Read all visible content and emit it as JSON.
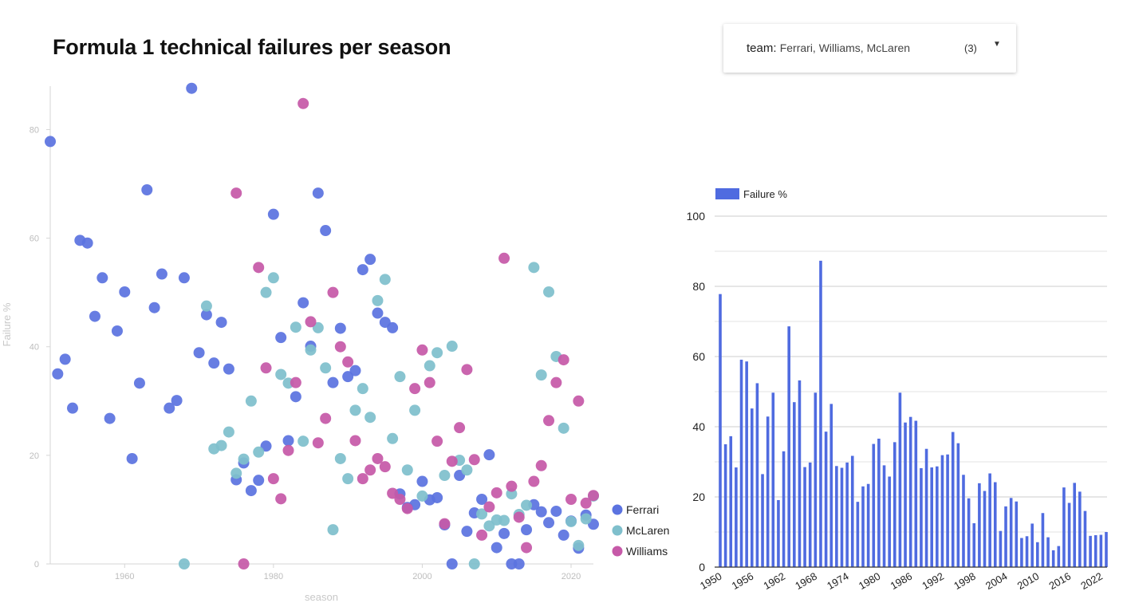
{
  "page_title": "Formula 1 technical failures per season",
  "filter": {
    "label": "team",
    "value": "Ferrari, Williams, McLaren",
    "count": "(3)",
    "caret_icon": "caret-down-icon"
  },
  "chart_data": [
    {
      "type": "scatter",
      "xlabel": "season",
      "ylabel": "Failure %",
      "xlim": [
        1950,
        2023
      ],
      "ylim": [
        0,
        88
      ],
      "x_ticks": [
        1960,
        1980,
        2000,
        2020
      ],
      "y_ticks": [
        0,
        20,
        40,
        60,
        80
      ],
      "legend_position": "right",
      "series": [
        {
          "name": "Ferrari",
          "color": "#5b73e0",
          "points": [
            [
              1950,
              77.8
            ],
            [
              1951,
              35
            ],
            [
              1952,
              37.7
            ],
            [
              1953,
              28.7
            ],
            [
              1954,
              59.6
            ],
            [
              1955,
              59.1
            ],
            [
              1956,
              45.6
            ],
            [
              1957,
              52.7
            ],
            [
              1958,
              26.8
            ],
            [
              1959,
              42.9
            ],
            [
              1960,
              50.1
            ],
            [
              1961,
              19.4
            ],
            [
              1962,
              33.3
            ],
            [
              1963,
              68.9
            ],
            [
              1964,
              47.2
            ],
            [
              1965,
              53.4
            ],
            [
              1966,
              28.7
            ],
            [
              1967,
              30.1
            ],
            [
              1968,
              52.7
            ],
            [
              1969,
              87.6
            ],
            [
              1970,
              38.9
            ],
            [
              1971,
              45.9
            ],
            [
              1972,
              37
            ],
            [
              1973,
              44.5
            ],
            [
              1974,
              35.9
            ],
            [
              1975,
              15.5
            ],
            [
              1976,
              18.6
            ],
            [
              1977,
              13.5
            ],
            [
              1978,
              15.4
            ],
            [
              1979,
              21.7
            ],
            [
              1980,
              64.4
            ],
            [
              1981,
              41.7
            ],
            [
              1982,
              22.7
            ],
            [
              1983,
              30.8
            ],
            [
              1984,
              48.1
            ],
            [
              1985,
              40.1
            ],
            [
              1986,
              68.3
            ],
            [
              1987,
              61.4
            ],
            [
              1988,
              33.4
            ],
            [
              1989,
              43.4
            ],
            [
              1990,
              34.5
            ],
            [
              1991,
              35.6
            ],
            [
              1992,
              54.2
            ],
            [
              1993,
              56.1
            ],
            [
              1994,
              46.2
            ],
            [
              1995,
              44.5
            ],
            [
              1996,
              43.5
            ],
            [
              1997,
              12.9
            ],
            [
              1998,
              10.4
            ],
            [
              1999,
              10.9
            ],
            [
              2000,
              15.2
            ],
            [
              2001,
              11.8
            ],
            [
              2002,
              12.2
            ],
            [
              2003,
              7.2
            ],
            [
              2004,
              0
            ],
            [
              2005,
              16.3
            ],
            [
              2006,
              6
            ],
            [
              2007,
              9.4
            ],
            [
              2008,
              11.9
            ],
            [
              2009,
              20.1
            ],
            [
              2010,
              3
            ],
            [
              2011,
              5.6
            ],
            [
              2012,
              0
            ],
            [
              2013,
              0
            ],
            [
              2014,
              6.3
            ],
            [
              2015,
              10.9
            ],
            [
              2016,
              9.6
            ],
            [
              2017,
              7.6
            ],
            [
              2018,
              9.7
            ],
            [
              2019,
              5.3
            ],
            [
              2020,
              7.9
            ],
            [
              2021,
              2.9
            ],
            [
              2022,
              9
            ],
            [
              2023,
              7.3
            ]
          ]
        },
        {
          "name": "McLaren",
          "color": "#7fbfcc",
          "points": [
            [
              1968,
              0
            ],
            [
              1971,
              47.5
            ],
            [
              1972,
              21.2
            ],
            [
              1973,
              21.8
            ],
            [
              1974,
              24.3
            ],
            [
              1975,
              16.7
            ],
            [
              1976,
              19.3
            ],
            [
              1977,
              30
            ],
            [
              1978,
              20.6
            ],
            [
              1979,
              50
            ],
            [
              1980,
              52.7
            ],
            [
              1981,
              34.9
            ],
            [
              1982,
              33.3
            ],
            [
              1983,
              43.6
            ],
            [
              1984,
              22.6
            ],
            [
              1985,
              39.4
            ],
            [
              1986,
              43.5
            ],
            [
              1987,
              36.1
            ],
            [
              1988,
              6.3
            ],
            [
              1989,
              19.4
            ],
            [
              1990,
              15.7
            ],
            [
              1991,
              28.3
            ],
            [
              1992,
              32.3
            ],
            [
              1993,
              27
            ],
            [
              1994,
              48.5
            ],
            [
              1995,
              52.4
            ],
            [
              1996,
              23.1
            ],
            [
              1997,
              34.5
            ],
            [
              1998,
              17.3
            ],
            [
              1999,
              28.3
            ],
            [
              2000,
              12.5
            ],
            [
              2001,
              36.5
            ],
            [
              2002,
              38.9
            ],
            [
              2003,
              16.3
            ],
            [
              2004,
              40.1
            ],
            [
              2005,
              19.1
            ],
            [
              2006,
              17.3
            ],
            [
              2007,
              0
            ],
            [
              2008,
              9.2
            ],
            [
              2009,
              7
            ],
            [
              2010,
              8.1
            ],
            [
              2011,
              8
            ],
            [
              2012,
              12.9
            ],
            [
              2013,
              9.1
            ],
            [
              2014,
              10.8
            ],
            [
              2015,
              54.6
            ],
            [
              2016,
              34.8
            ],
            [
              2017,
              50.1
            ],
            [
              2018,
              38.2
            ],
            [
              2019,
              25
            ],
            [
              2020,
              7.8
            ],
            [
              2021,
              3.4
            ],
            [
              2022,
              8.3
            ],
            [
              2023,
              12.5
            ]
          ]
        },
        {
          "name": "Williams",
          "color": "#c659a8",
          "points": [
            [
              1975,
              68.3
            ],
            [
              1976,
              0
            ],
            [
              1978,
              54.6
            ],
            [
              1979,
              36.1
            ],
            [
              1980,
              15.7
            ],
            [
              1981,
              12
            ],
            [
              1982,
              20.9
            ],
            [
              1983,
              33.4
            ],
            [
              1984,
              84.8
            ],
            [
              1985,
              44.6
            ],
            [
              1986,
              22.3
            ],
            [
              1987,
              26.8
            ],
            [
              1988,
              50
            ],
            [
              1989,
              40
            ],
            [
              1990,
              37.2
            ],
            [
              1991,
              22.7
            ],
            [
              1992,
              15.7
            ],
            [
              1993,
              17.3
            ],
            [
              1994,
              19.4
            ],
            [
              1995,
              17.9
            ],
            [
              1996,
              13
            ],
            [
              1997,
              11.9
            ],
            [
              1998,
              10.2
            ],
            [
              1999,
              32.3
            ],
            [
              2000,
              39.4
            ],
            [
              2001,
              33.4
            ],
            [
              2002,
              22.6
            ],
            [
              2003,
              7.4
            ],
            [
              2004,
              18.9
            ],
            [
              2005,
              25.1
            ],
            [
              2006,
              35.8
            ],
            [
              2007,
              19.2
            ],
            [
              2008,
              5.3
            ],
            [
              2009,
              10.5
            ],
            [
              2010,
              13.1
            ],
            [
              2011,
              56.3
            ],
            [
              2012,
              14.3
            ],
            [
              2013,
              8.6
            ],
            [
              2014,
              3
            ],
            [
              2015,
              15.2
            ],
            [
              2016,
              18.1
            ],
            [
              2017,
              26.4
            ],
            [
              2018,
              33.4
            ],
            [
              2019,
              37.6
            ],
            [
              2020,
              11.9
            ],
            [
              2021,
              30
            ],
            [
              2022,
              11.2
            ],
            [
              2023,
              12.6
            ]
          ]
        }
      ]
    },
    {
      "type": "bar",
      "legend_position": "top-left",
      "ylim": [
        0,
        100
      ],
      "y_ticks": [
        0,
        20,
        40,
        60,
        80,
        100
      ],
      "gridlines": true,
      "x_tick_labels": [
        "1950",
        "1956",
        "1962",
        "1968",
        "1974",
        "1980",
        "1986",
        "1992",
        "1998",
        "2004",
        "2010",
        "2016",
        "2022"
      ],
      "series": [
        {
          "name": "Failure %",
          "color": "#4f6be0",
          "categories": [
            1950,
            1951,
            1952,
            1953,
            1954,
            1955,
            1956,
            1957,
            1958,
            1959,
            1960,
            1961,
            1962,
            1963,
            1964,
            1965,
            1966,
            1967,
            1968,
            1969,
            1970,
            1971,
            1972,
            1973,
            1974,
            1975,
            1976,
            1977,
            1978,
            1979,
            1980,
            1981,
            1982,
            1983,
            1984,
            1985,
            1986,
            1987,
            1988,
            1989,
            1990,
            1991,
            1992,
            1993,
            1994,
            1995,
            1996,
            1997,
            1998,
            1999,
            2000,
            2001,
            2002,
            2003,
            2004,
            2005,
            2006,
            2007,
            2008,
            2009,
            2010,
            2011,
            2012,
            2013,
            2014,
            2015,
            2016,
            2017,
            2018,
            2019,
            2020,
            2021,
            2022,
            2023
          ],
          "values": [
            77.8,
            35,
            37.3,
            28.4,
            59.1,
            58.6,
            45.2,
            52.4,
            26.5,
            42.9,
            49.7,
            19.1,
            33,
            68.6,
            47,
            53.2,
            28.5,
            29.8,
            49.7,
            87.3,
            38.6,
            46.5,
            28.8,
            28.3,
            29.8,
            31.7,
            18.6,
            23,
            23.7,
            35.1,
            36.6,
            29,
            25.8,
            35.6,
            49.7,
            41.2,
            42.8,
            41.7,
            28.2,
            33.7,
            28.4,
            28.7,
            31.9,
            32.1,
            38.5,
            35.3,
            26.3,
            19.6,
            12.5,
            23.9,
            21.7,
            26.7,
            24.2,
            10.3,
            17.3,
            19.7,
            18.7,
            8.3,
            8.8,
            12.4,
            7.1,
            15.4,
            8.5,
            4.8,
            6,
            22.7,
            18.3,
            24,
            21.5,
            16,
            8.9,
            9.1,
            9.2,
            10
          ]
        }
      ]
    }
  ]
}
